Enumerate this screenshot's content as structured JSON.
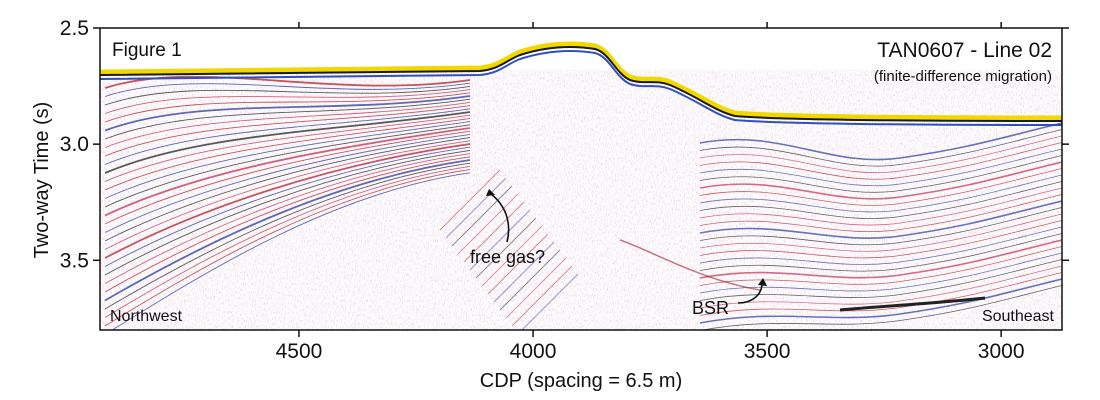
{
  "chart_data": {
    "type": "seismic-section",
    "title": "TAN0607 - Line 02",
    "subtitle": "(finite-difference migration)",
    "figure_label": "Figure 1",
    "xlabel": "CDP (spacing = 6.5 m)",
    "ylabel": "Two-way Time (s)",
    "xlim": [
      4925,
      2870
    ],
    "xticks": [
      4500,
      4000,
      3500,
      3000
    ],
    "ylim": [
      2.5,
      3.8
    ],
    "y_inverted": true,
    "yticks": [
      2.5,
      {
        "value": 3,
        "label": "3.0"
      },
      3.5
    ],
    "annotations": [
      "free gas?",
      "BSR",
      "Northwest",
      "Southeast"
    ]
  }
}
